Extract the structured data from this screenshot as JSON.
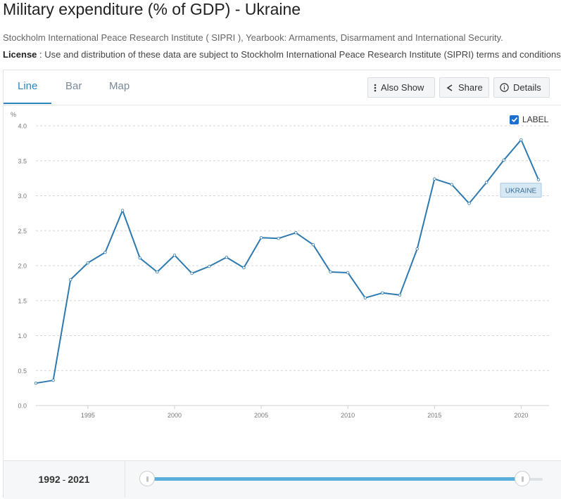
{
  "header": {
    "title": "Military expenditure (% of GDP) - Ukraine",
    "source": "Stockholm International Peace Research Institute ( SIPRI ), Yearbook: Armaments, Disarmament and International Security.",
    "license_label": "License",
    "license_text": " : Use and distribution of these data are subject to Stockholm International Peace Research Institute (SIPRI) terms and conditions."
  },
  "tabs": [
    {
      "label": "Line"
    },
    {
      "label": "Bar"
    },
    {
      "label": "Map"
    }
  ],
  "toolbar": {
    "also_show": "Also Show",
    "share": "Share",
    "details": "Details"
  },
  "label_toggle": {
    "label": "LABEL",
    "checked": true
  },
  "range": {
    "start": "1992",
    "separator": "-",
    "end": "2021",
    "start_fraction": 0.0,
    "end_fraction": 1.0
  },
  "colors": {
    "line": "#2e7ab0",
    "accent": "#2e86c1",
    "grid": "#d6d6d6",
    "label_bg": "#d7e8f5",
    "label_border": "#a8c8e2"
  },
  "chart_data": {
    "type": "line",
    "ylabel": "%",
    "ylim": [
      0,
      4.0
    ],
    "yticks": [
      "0.0",
      "0.5",
      "1.0",
      "1.5",
      "2.0",
      "2.5",
      "3.0",
      "3.5",
      "4.0"
    ],
    "xlim": [
      1992,
      2021
    ],
    "xticks": [
      "1995",
      "2000",
      "2005",
      "2010",
      "2015",
      "2020"
    ],
    "series": [
      {
        "name": "UKRAINE",
        "x": [
          1992,
          1993,
          1994,
          1995,
          1996,
          1997,
          1998,
          1999,
          2000,
          2001,
          2002,
          2003,
          2004,
          2005,
          2006,
          2007,
          2008,
          2009,
          2010,
          2011,
          2012,
          2013,
          2014,
          2015,
          2016,
          2017,
          2018,
          2019,
          2020,
          2021
        ],
        "values": [
          0.32,
          0.36,
          1.8,
          2.04,
          2.19,
          2.79,
          2.11,
          1.91,
          2.15,
          1.89,
          1.99,
          2.12,
          1.97,
          2.4,
          2.39,
          2.47,
          2.3,
          1.91,
          1.9,
          1.54,
          1.61,
          1.58,
          2.24,
          3.24,
          3.16,
          2.89,
          3.19,
          3.51,
          3.8,
          3.23
        ]
      }
    ],
    "end_label": "UKRAINE"
  }
}
